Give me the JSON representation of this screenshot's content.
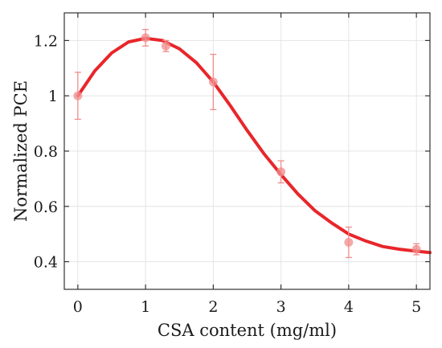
{
  "chart_data": {
    "type": "scatter",
    "xlabel": "CSA content (mg/ml)",
    "ylabel": "Normalized PCE",
    "xlim": [
      -0.2,
      5.2
    ],
    "ylim": [
      0.3,
      1.3
    ],
    "xticks": [
      0,
      1,
      2,
      3,
      4,
      5
    ],
    "xtick_labels": [
      "0",
      "1",
      "2",
      "3",
      "4",
      "5"
    ],
    "yticks": [
      0.4,
      0.6,
      0.8,
      1.0,
      1.2
    ],
    "ytick_labels": [
      "0.4",
      "0.6",
      "0.8",
      "1",
      "1.2"
    ],
    "grid": true,
    "legend": "none",
    "series": [
      {
        "kind": "points-with-error",
        "x": [
          0,
          1,
          1.3,
          2,
          3,
          4,
          5
        ],
        "y": [
          1.0,
          1.21,
          1.18,
          1.05,
          0.725,
          0.47,
          0.445
        ],
        "err": [
          0.085,
          0.03,
          0.02,
          0.1,
          0.04,
          0.055,
          0.02
        ],
        "color": "#f08c8c"
      },
      {
        "kind": "fit-curve",
        "x": [
          0,
          0.25,
          0.5,
          0.75,
          1.0,
          1.25,
          1.5,
          1.75,
          2.0,
          2.25,
          2.5,
          2.75,
          3.0,
          3.25,
          3.5,
          3.75,
          4.0,
          4.25,
          4.5,
          4.75,
          5.0,
          5.2
        ],
        "y": [
          1.0,
          1.09,
          1.155,
          1.195,
          1.208,
          1.2,
          1.17,
          1.12,
          1.05,
          0.965,
          0.875,
          0.79,
          0.715,
          0.645,
          0.585,
          0.54,
          0.5,
          0.475,
          0.455,
          0.445,
          0.438,
          0.433
        ],
        "color": "#e8262b"
      }
    ]
  }
}
